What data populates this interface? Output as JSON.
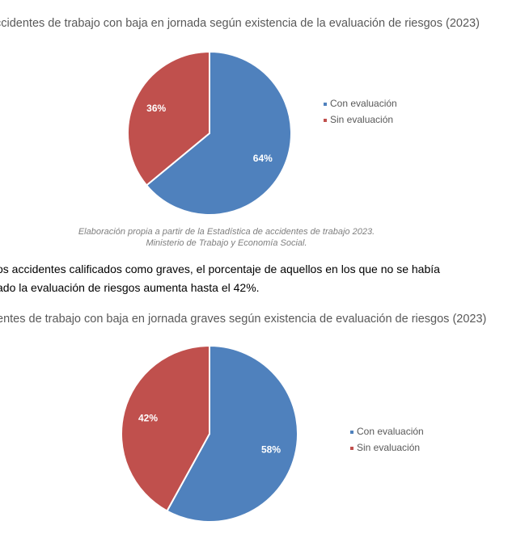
{
  "chart_data": [
    {
      "type": "pie",
      "title": "ccidentes de trabajo con baja en jornada según existencia de la evaluación de riesgos (2023)",
      "labels": [
        "Con evaluación",
        "Sin evaluación"
      ],
      "values": [
        64,
        36
      ],
      "value_labels": [
        "64%",
        "36%"
      ],
      "colors": [
        "#4f81bd",
        "#c0504d"
      ],
      "legend_position": "right"
    },
    {
      "type": "pie",
      "title": "entes de trabajo con baja en jornada graves según existencia de evaluación de riesgos (2023)",
      "labels": [
        "Con evaluación",
        "Sin evaluación"
      ],
      "values": [
        58,
        42
      ],
      "value_labels": [
        "58%",
        "42%"
      ],
      "colors": [
        "#4f81bd",
        "#c0504d"
      ],
      "legend_position": "right"
    }
  ],
  "source": {
    "line1": "Elaboración propia a partir de la Estadística de accidentes de trabajo 2023.",
    "line2": "Ministerio de Trabajo y Economía Social."
  },
  "paragraph": {
    "line1": "os accidentes calificados como graves, el porcentaje de aquellos en los que no se había",
    "line2": "ado la evaluación de riesgos aumenta hasta el 42%."
  }
}
